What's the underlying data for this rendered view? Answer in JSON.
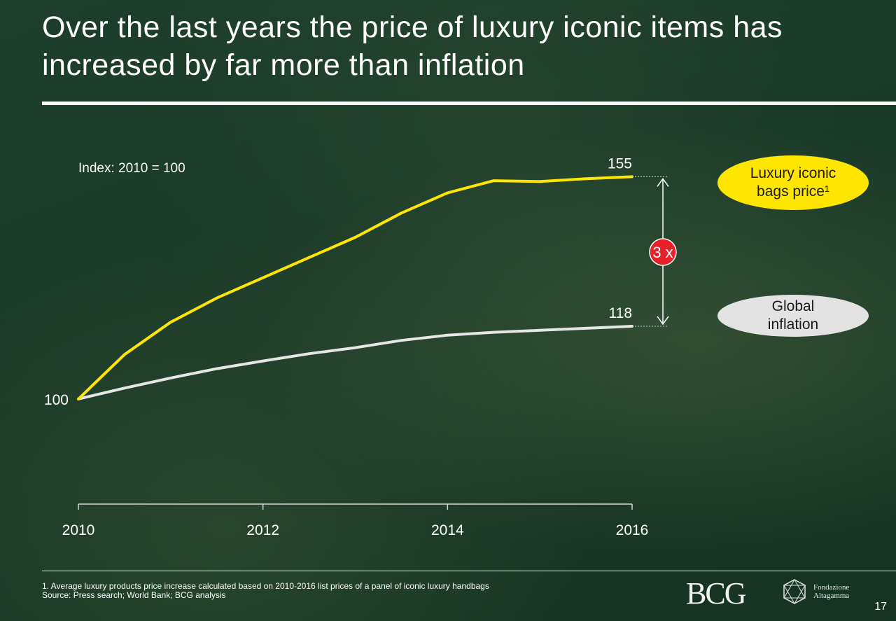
{
  "title": "Over the last years the price of luxury iconic items has increased by far more than inflation",
  "index_label": "Index: 2010 = 100",
  "multiplier_label": "3 x",
  "colors": {
    "luxury": "#ffe600",
    "inflation": "#e6e6e6",
    "badge": "#e8202a",
    "background": "#1b3b2a"
  },
  "legend": {
    "luxury_line1": "Luxury iconic",
    "luxury_line2": "bags price¹",
    "inflation_line1": "Global",
    "inflation_line2": "inflation"
  },
  "chart_data": {
    "type": "line",
    "x": [
      2010,
      2010.5,
      2011,
      2011.5,
      2012,
      2012.5,
      2013,
      2013.5,
      2014,
      2014.5,
      2015,
      2015.5,
      2016
    ],
    "xlim": [
      2010,
      2016
    ],
    "ylim": [
      74,
      171
    ],
    "xticks": [
      2010,
      2012,
      2014,
      2016
    ],
    "series": [
      {
        "name": "Luxury iconic bags price¹",
        "color": "#ffe600",
        "values": [
          100,
          111,
          119,
          125,
          130,
          135,
          140,
          146,
          151,
          154,
          153.8,
          154.5,
          155
        ]
      },
      {
        "name": "Global inflation",
        "color": "#e6e6e6",
        "values": [
          100,
          102.7,
          105.2,
          107.5,
          109.4,
          111.2,
          112.7,
          114.5,
          115.8,
          116.5,
          117.0,
          117.5,
          118
        ]
      }
    ],
    "start_label": "100",
    "end_labels": [
      "155",
      "118"
    ],
    "grid": false
  },
  "footnote": {
    "line1": "1. Average luxury products price increase calculated based on 2010-2016 list prices of a panel of iconic luxury handbags",
    "line2": "Source: Press search; World Bank; BCG analysis"
  },
  "logos": {
    "bcg": "BCG",
    "fondazione_line1": "Fondazione",
    "fondazione_line2": "Altagamma"
  },
  "page_number": "17"
}
